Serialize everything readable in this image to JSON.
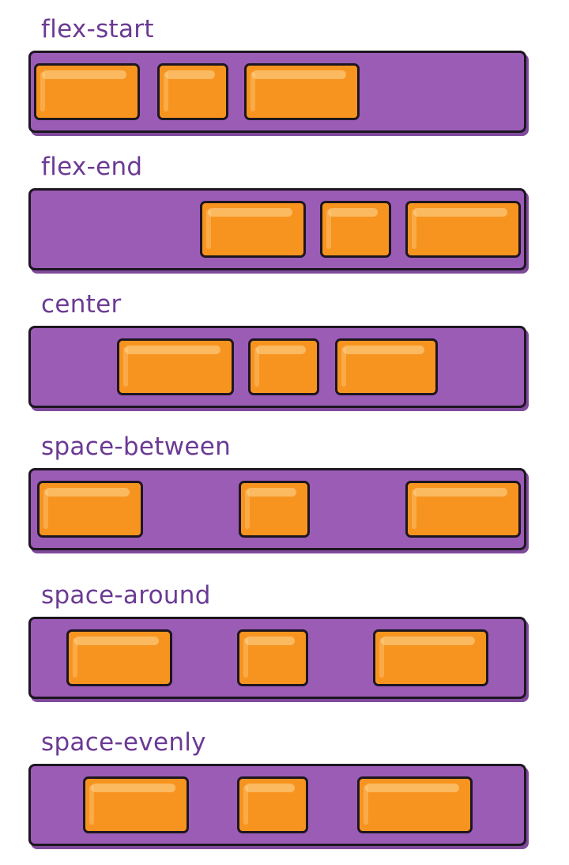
{
  "sections": [
    {
      "label": "flex-start"
    },
    {
      "label": "flex-end"
    },
    {
      "label": "center"
    },
    {
      "label": "space-between"
    },
    {
      "label": "space-around"
    },
    {
      "label": "space-evenly"
    }
  ],
  "colors": {
    "label": "#6b3a94",
    "container": "#9b5cb6",
    "item": "#f7941f",
    "outline": "#1d1620"
  }
}
